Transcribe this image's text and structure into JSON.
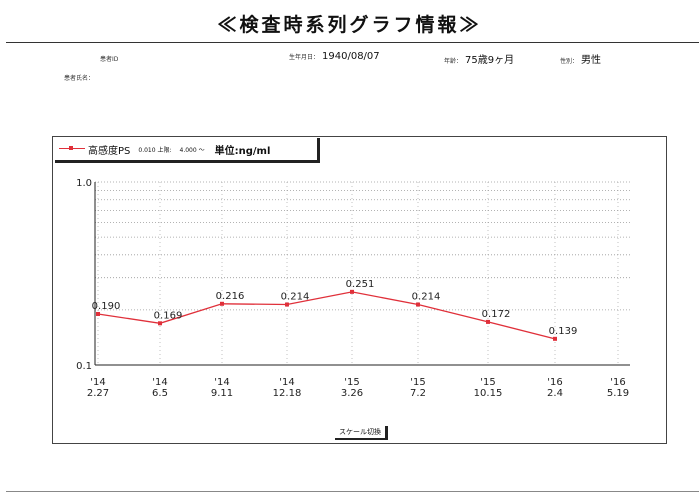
{
  "page": {
    "title": "≪検査時系列グラフ情報≫",
    "patient_id_label": "患者ID",
    "birth_label": "生年月日：",
    "birth_value": "1940/08/07",
    "age_label": "年齢：",
    "age_value": "75歳9ヶ月",
    "sex_label": "性別：",
    "sex_value": "男性",
    "name_label": "患者氏名："
  },
  "legend": {
    "series_name": "高感度PS",
    "lower_text": "0.010 上限:",
    "upper_text": "4.000 ～",
    "unit_text": "単位:ng/ml"
  },
  "scale_button": {
    "label": "スケール切換"
  },
  "colors": {
    "series": "#e0303a",
    "grid": "#9a9a9a",
    "axis": "#222222"
  },
  "chart_data": {
    "type": "line",
    "title": "",
    "xlabel": "",
    "ylabel": "",
    "yscale": "log",
    "ylim": [
      0.1,
      1.0
    ],
    "y_ticks": [
      "1.0",
      "0.1"
    ],
    "grid": true,
    "legend_position": "top-left",
    "x": [
      {
        "year": "'14",
        "date": "2.27"
      },
      {
        "year": "'14",
        "date": "6.5"
      },
      {
        "year": "'14",
        "date": "9.11"
      },
      {
        "year": "'14",
        "date": "12.18"
      },
      {
        "year": "'15",
        "date": "3.26"
      },
      {
        "year": "'15",
        "date": "7.2"
      },
      {
        "year": "'15",
        "date": "10.15"
      },
      {
        "year": "'16",
        "date": "2.4"
      },
      {
        "year": "'16",
        "date": "5.19"
      }
    ],
    "series": [
      {
        "name": "高感度PS",
        "values": [
          0.19,
          0.169,
          0.216,
          0.214,
          0.251,
          0.214,
          0.172,
          0.139,
          null
        ],
        "labels": [
          "0.190",
          "0.169",
          "0.216",
          "0.214",
          "0.251",
          "0.214",
          "0.172",
          "0.139",
          ""
        ]
      }
    ]
  }
}
